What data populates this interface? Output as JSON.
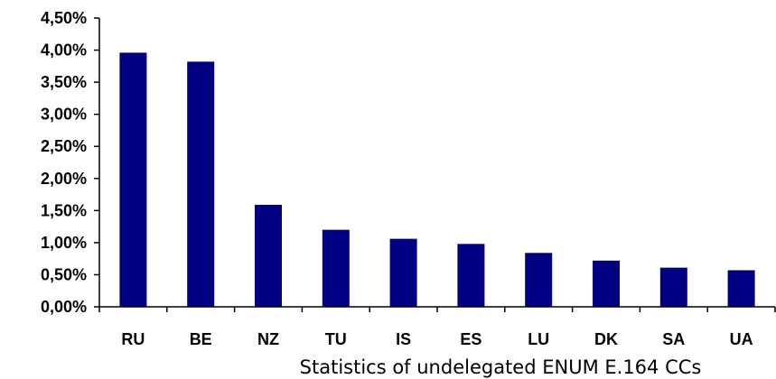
{
  "chart_data": {
    "type": "bar",
    "title": "",
    "xlabel": "Statistics of undelegated ENUM E.164 CCs",
    "ylabel": "",
    "categories": [
      "RU",
      "BE",
      "NZ",
      "TU",
      "IS",
      "ES",
      "LU",
      "DK",
      "SA",
      "UA"
    ],
    "values": [
      3.96,
      3.82,
      1.59,
      1.2,
      1.06,
      0.98,
      0.84,
      0.72,
      0.61,
      0.57
    ],
    "ylim": [
      0,
      4.5
    ],
    "yticks": [
      "0,00%",
      "0,50%",
      "1,00%",
      "1,50%",
      "2,00%",
      "2,50%",
      "3,00%",
      "3,50%",
      "4,00%",
      "4,50%"
    ],
    "grid": false,
    "legend": "none",
    "colors": {
      "bar": "#000080",
      "axis": "#000000"
    }
  }
}
